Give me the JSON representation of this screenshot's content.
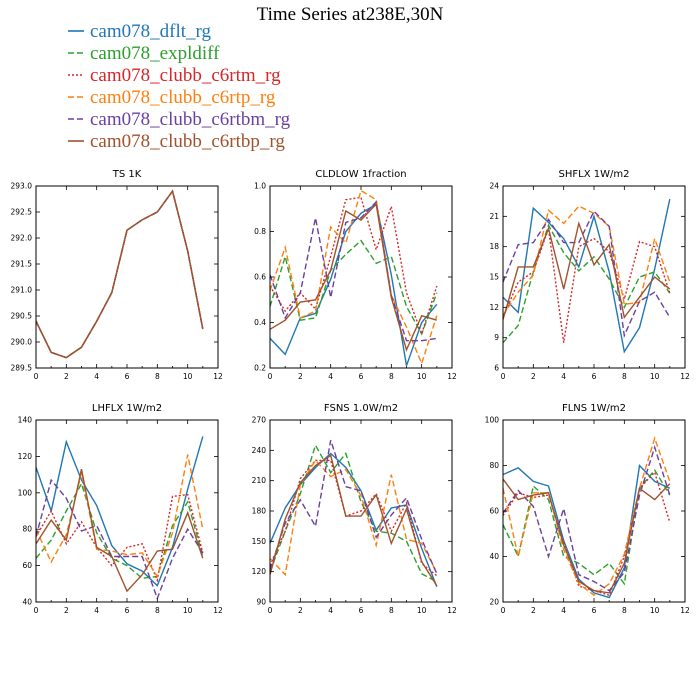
{
  "title": "Time Series at238E,30N",
  "legend": [
    {
      "label": "cam078_dflt_rg",
      "color": "#1f77b4",
      "dash": "solid"
    },
    {
      "label": "cam078_expldiff",
      "color": "#2ca02c",
      "dash": "dashed"
    },
    {
      "label": "cam078_clubb_c6rtm_rg",
      "color": "#d62728",
      "dash": "dotted"
    },
    {
      "label": "cam078_clubb_c6rtp_rg",
      "color": "#ff7f0e",
      "dash": "dashed"
    },
    {
      "label": "cam078_clubb_c6rtbm_rg",
      "color": "#6b3fa0",
      "dash": "dashed"
    },
    {
      "label": "cam078_clubb_c6rtbp_rg",
      "color": "#a0522d",
      "dash": "solid"
    }
  ],
  "chart_data": [
    {
      "type": "line",
      "title": "TS   1K",
      "x": [
        0,
        1,
        2,
        3,
        4,
        5,
        6,
        7,
        8,
        9,
        10,
        11
      ],
      "xlim": [
        0,
        12
      ],
      "xticks": [
        0,
        2,
        4,
        6,
        8,
        10,
        12
      ],
      "ylim": [
        289.5,
        293.0
      ],
      "yticks": [
        "289.5",
        "290.0",
        "290.5",
        "291.0",
        "291.5",
        "292.0",
        "292.5",
        "293.0"
      ],
      "series": [
        {
          "values": [
            290.4,
            289.8,
            289.7,
            289.9,
            290.4,
            290.95,
            292.15,
            292.35,
            292.5,
            292.9,
            291.75,
            290.25
          ]
        },
        {
          "values": [
            290.4,
            289.8,
            289.7,
            289.9,
            290.4,
            290.95,
            292.15,
            292.35,
            292.5,
            292.9,
            291.75,
            290.25
          ]
        },
        {
          "values": [
            290.4,
            289.8,
            289.7,
            289.9,
            290.4,
            290.95,
            292.15,
            292.35,
            292.5,
            292.9,
            291.75,
            290.25
          ]
        },
        {
          "values": [
            290.4,
            289.8,
            289.7,
            289.9,
            290.4,
            290.95,
            292.15,
            292.35,
            292.5,
            292.9,
            291.75,
            290.25
          ]
        },
        {
          "values": [
            290.4,
            289.8,
            289.7,
            289.9,
            290.4,
            290.95,
            292.15,
            292.35,
            292.5,
            292.9,
            291.75,
            290.25
          ]
        },
        {
          "values": [
            290.4,
            289.8,
            289.7,
            289.9,
            290.4,
            290.95,
            292.15,
            292.35,
            292.5,
            292.9,
            291.75,
            290.25
          ]
        }
      ]
    },
    {
      "type": "line",
      "title": "CLDLOW   1fraction",
      "x": [
        0,
        1,
        2,
        3,
        4,
        5,
        6,
        7,
        8,
        9,
        10,
        11
      ],
      "xlim": [
        0,
        12
      ],
      "xticks": [
        0,
        2,
        4,
        6,
        8,
        10,
        12
      ],
      "ylim": [
        0.2,
        1.0
      ],
      "yticks": [
        "0.2",
        "0.4",
        "0.6",
        "0.8",
        "1.0"
      ],
      "series": [
        {
          "values": [
            0.33,
            0.26,
            0.42,
            0.44,
            0.59,
            0.8,
            0.88,
            0.92,
            0.61,
            0.21,
            0.4,
            0.48
          ]
        },
        {
          "values": [
            0.47,
            0.69,
            0.41,
            0.42,
            0.63,
            0.7,
            0.76,
            0.66,
            0.69,
            0.47,
            0.35,
            0.53
          ]
        },
        {
          "values": [
            0.56,
            0.45,
            0.53,
            0.46,
            0.69,
            0.94,
            0.95,
            0.72,
            0.91,
            0.53,
            0.35,
            0.56
          ]
        },
        {
          "values": [
            0.54,
            0.73,
            0.42,
            0.45,
            0.82,
            0.75,
            0.98,
            0.94,
            0.52,
            0.38,
            0.22,
            0.43
          ]
        },
        {
          "values": [
            0.61,
            0.42,
            0.53,
            0.86,
            0.51,
            0.84,
            0.86,
            0.93,
            0.52,
            0.32,
            0.32,
            0.33
          ]
        },
        {
          "values": [
            0.37,
            0.41,
            0.49,
            0.5,
            0.63,
            0.89,
            0.85,
            0.92,
            0.51,
            0.28,
            0.43,
            0.41
          ]
        }
      ]
    },
    {
      "type": "line",
      "title": "SHFLX   1W/m2",
      "x": [
        0,
        1,
        2,
        3,
        4,
        5,
        6,
        7,
        8,
        9,
        10,
        11
      ],
      "xlim": [
        0,
        12
      ],
      "xticks": [
        0,
        2,
        4,
        6,
        8,
        10,
        12
      ],
      "ylim": [
        6,
        24
      ],
      "yticks": [
        "6",
        "9",
        "12",
        "15",
        "18",
        "21",
        "24"
      ],
      "series": [
        {
          "values": [
            13.0,
            11.5,
            21.8,
            20.4,
            18.8,
            16.0,
            21.0,
            15.5,
            7.6,
            10.0,
            15.8,
            22.7
          ]
        },
        {
          "values": [
            8.5,
            10.2,
            15.5,
            20.1,
            17.4,
            15.6,
            17.0,
            14.8,
            12.0,
            15.0,
            15.5,
            13.4
          ]
        },
        {
          "values": [
            11.0,
            14.5,
            15.5,
            19.8,
            8.5,
            18.0,
            18.8,
            17.5,
            12.8,
            18.5,
            18.0,
            13.4
          ]
        },
        {
          "values": [
            11.2,
            13.5,
            15.2,
            21.6,
            20.3,
            22.0,
            21.3,
            20.0,
            12.3,
            12.5,
            18.8,
            14.5
          ]
        },
        {
          "values": [
            14.5,
            18.2,
            18.4,
            20.7,
            18.4,
            18.4,
            21.5,
            20.0,
            9.2,
            12.6,
            13.5,
            11.0
          ]
        },
        {
          "values": [
            10.8,
            16.0,
            16.0,
            19.8,
            13.8,
            20.3,
            16.2,
            18.2,
            11.0,
            13.0,
            15.0,
            13.8
          ]
        }
      ]
    },
    {
      "type": "line",
      "title": "LHFLX   1W/m2",
      "x": [
        0,
        1,
        2,
        3,
        4,
        5,
        6,
        7,
        8,
        9,
        10,
        11
      ],
      "xlim": [
        0,
        12
      ],
      "xticks": [
        0,
        2,
        4,
        6,
        8,
        10,
        12
      ],
      "ylim": [
        40,
        140
      ],
      "yticks": [
        "40",
        "60",
        "80",
        "100",
        "120",
        "140"
      ],
      "series": [
        {
          "values": [
            114,
            90,
            128,
            107,
            93,
            71,
            61,
            57,
            49,
            70,
            102,
            131
          ]
        },
        {
          "values": [
            64,
            74,
            90,
            105,
            78,
            64,
            60,
            53,
            54,
            82,
            95,
            65
          ]
        },
        {
          "values": [
            76,
            90,
            72,
            84,
            70,
            60,
            70,
            72,
            52,
            98,
            99,
            67
          ]
        },
        {
          "values": [
            80,
            62,
            77,
            111,
            69,
            68,
            66,
            67,
            54,
            78,
            121,
            80
          ]
        },
        {
          "values": [
            76,
            107,
            97,
            79,
            82,
            65,
            65,
            65,
            42,
            64,
            80,
            67
          ]
        },
        {
          "values": [
            72,
            85,
            74,
            113,
            70,
            65,
            46,
            55,
            68,
            69,
            89,
            64
          ]
        }
      ]
    },
    {
      "type": "line",
      "title": "FSNS   1.0W/m2",
      "x": [
        0,
        1,
        2,
        3,
        4,
        5,
        6,
        7,
        8,
        9,
        10,
        11
      ],
      "xlim": [
        0,
        12
      ],
      "xticks": [
        0,
        2,
        4,
        6,
        8,
        10,
        12
      ],
      "ylim": [
        90,
        270
      ],
      "yticks": [
        "90",
        "120",
        "150",
        "180",
        "210",
        "240",
        "270"
      ],
      "series": [
        {
          "values": [
            148,
            183,
            206,
            223,
            237,
            223,
            200,
            161,
            183,
            186,
            143,
            105
          ]
        },
        {
          "values": [
            120,
            160,
            197,
            245,
            218,
            237,
            189,
            160,
            158,
            150,
            118,
            110
          ]
        },
        {
          "values": [
            126,
            160,
            212,
            230,
            230,
            175,
            180,
            197,
            160,
            188,
            128,
            116
          ]
        },
        {
          "values": [
            133,
            117,
            206,
            230,
            214,
            221,
            195,
            146,
            216,
            152,
            148,
            119
          ]
        },
        {
          "values": [
            122,
            168,
            191,
            165,
            250,
            204,
            200,
            154,
            176,
            193,
            152,
            118
          ]
        },
        {
          "values": [
            117,
            172,
            208,
            225,
            235,
            175,
            175,
            196,
            148,
            182,
            130,
            106
          ]
        }
      ]
    },
    {
      "type": "line",
      "title": "FLNS   1W/m2",
      "x": [
        0,
        1,
        2,
        3,
        4,
        5,
        6,
        7,
        8,
        9,
        10,
        11
      ],
      "xlim": [
        0,
        12
      ],
      "xticks": [
        0,
        2,
        4,
        6,
        8,
        10,
        12
      ],
      "ylim": [
        20,
        100
      ],
      "yticks": [
        "20",
        "40",
        "60",
        "80",
        "100"
      ],
      "series": [
        {
          "values": [
            76,
            79,
            73,
            71,
            47,
            30,
            24,
            22,
            35,
            80,
            73,
            70
          ]
        },
        {
          "values": [
            54,
            40,
            71,
            65,
            40,
            37,
            32,
            37,
            28,
            70,
            78,
            67
          ]
        },
        {
          "values": [
            58,
            68,
            66,
            67,
            46,
            27,
            25,
            23,
            40,
            70,
            77,
            55
          ]
        },
        {
          "values": [
            70,
            40,
            68,
            68,
            43,
            28,
            23,
            28,
            41,
            70,
            92,
            73
          ]
        },
        {
          "values": [
            59,
            69,
            62,
            40,
            61,
            32,
            29,
            25,
            33,
            67,
            88,
            67
          ]
        },
        {
          "values": [
            74,
            65,
            67,
            68,
            45,
            29,
            25,
            24,
            37,
            70,
            65,
            72
          ]
        }
      ]
    }
  ]
}
